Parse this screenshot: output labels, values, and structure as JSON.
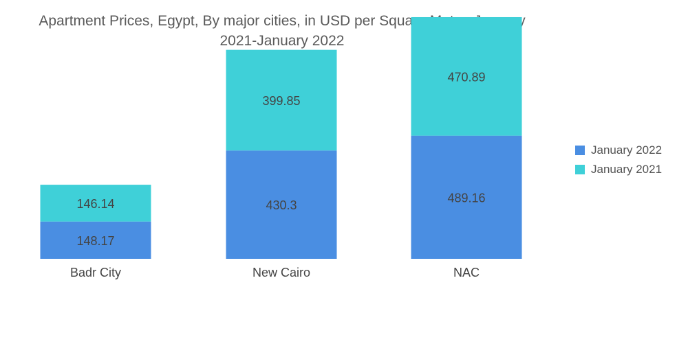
{
  "chart_data": {
    "type": "bar",
    "stacked": true,
    "title_lines": [
      "Apartment Prices, Egypt, By major cities, in USD per Square Meter, January",
      "2021-January 2022"
    ],
    "categories": [
      "Badr City",
      "New Cairo",
      "NAC"
    ],
    "series": [
      {
        "name": "January 2022",
        "color": "#4a8ee2",
        "values": [
          148.17,
          430.3,
          489.16
        ]
      },
      {
        "name": "January 2021",
        "color": "#3fd0d8",
        "values": [
          146.14,
          399.85,
          470.89
        ]
      }
    ],
    "xlabel": "",
    "ylabel": "",
    "ylim": [
      0,
      960
    ],
    "grid": false,
    "legend_position": "right"
  }
}
